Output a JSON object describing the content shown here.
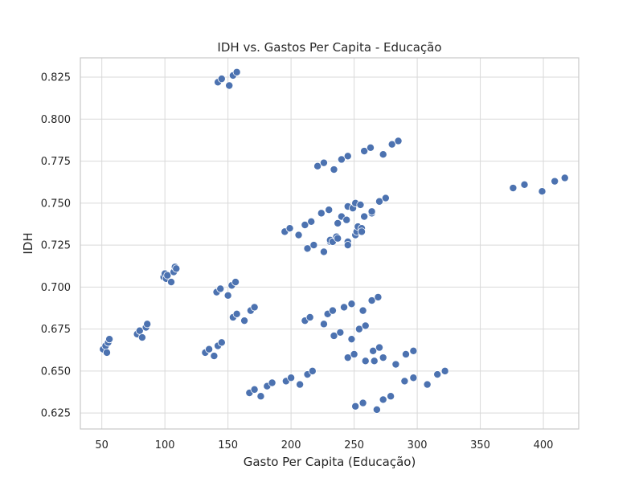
{
  "chart_data": {
    "type": "scatter",
    "title": "IDH vs. Gastos Per Capita - Educação",
    "xlabel": "Gasto Per Capita (Educação)",
    "ylabel": "IDH",
    "xlim": [
      33,
      428
    ],
    "ylim": [
      0.6155,
      0.8365
    ],
    "xticks": [
      50,
      100,
      150,
      200,
      250,
      300,
      350,
      400
    ],
    "yticks": [
      0.625,
      0.65,
      0.675,
      0.7,
      0.725,
      0.75,
      0.775,
      0.8,
      0.825
    ],
    "ytick_labels": [
      "0.625",
      "0.650",
      "0.675",
      "0.700",
      "0.725",
      "0.750",
      "0.775",
      "0.800",
      "0.825"
    ],
    "grid": true,
    "colors": {
      "point": "#4c72b0",
      "point_edge": "#ffffff",
      "grid": "#d9d9d9",
      "frame": "#c8c8c8",
      "text": "#262626"
    },
    "points": [
      [
        51,
        0.663
      ],
      [
        53,
        0.665
      ],
      [
        54,
        0.661
      ],
      [
        55,
        0.667
      ],
      [
        56,
        0.669
      ],
      [
        78,
        0.672
      ],
      [
        80,
        0.674
      ],
      [
        82,
        0.67
      ],
      [
        85,
        0.676
      ],
      [
        86,
        0.678
      ],
      [
        99,
        0.706
      ],
      [
        100,
        0.708
      ],
      [
        101,
        0.705
      ],
      [
        102,
        0.707
      ],
      [
        105,
        0.703
      ],
      [
        107,
        0.709
      ],
      [
        108,
        0.712
      ],
      [
        109,
        0.711
      ],
      [
        142,
        0.822
      ],
      [
        145,
        0.824
      ],
      [
        151,
        0.82
      ],
      [
        154,
        0.826
      ],
      [
        157,
        0.828
      ],
      [
        141,
        0.697
      ],
      [
        144,
        0.699
      ],
      [
        150,
        0.695
      ],
      [
        153,
        0.701
      ],
      [
        156,
        0.703
      ],
      [
        154,
        0.682
      ],
      [
        157,
        0.684
      ],
      [
        163,
        0.68
      ],
      [
        168,
        0.686
      ],
      [
        171,
        0.688
      ],
      [
        132,
        0.661
      ],
      [
        135,
        0.663
      ],
      [
        139,
        0.659
      ],
      [
        142,
        0.665
      ],
      [
        145,
        0.667
      ],
      [
        167,
        0.637
      ],
      [
        171,
        0.639
      ],
      [
        176,
        0.635
      ],
      [
        181,
        0.641
      ],
      [
        185,
        0.643
      ],
      [
        196,
        0.644
      ],
      [
        200,
        0.646
      ],
      [
        207,
        0.642
      ],
      [
        213,
        0.648
      ],
      [
        217,
        0.65
      ],
      [
        195,
        0.733
      ],
      [
        199,
        0.735
      ],
      [
        206,
        0.731
      ],
      [
        211,
        0.737
      ],
      [
        216,
        0.739
      ],
      [
        213,
        0.723
      ],
      [
        218,
        0.725
      ],
      [
        226,
        0.721
      ],
      [
        231,
        0.727
      ],
      [
        236,
        0.729
      ],
      [
        224,
        0.744
      ],
      [
        230,
        0.746
      ],
      [
        237,
        0.738
      ],
      [
        240,
        0.742
      ],
      [
        244,
        0.74
      ],
      [
        231,
        0.728
      ],
      [
        233,
        0.727
      ],
      [
        236,
        0.73
      ],
      [
        237,
        0.729
      ],
      [
        245,
        0.727
      ],
      [
        245,
        0.725
      ],
      [
        251,
        0.731
      ],
      [
        252,
        0.733
      ],
      [
        253,
        0.736
      ],
      [
        256,
        0.735
      ],
      [
        256,
        0.733
      ],
      [
        245,
        0.748
      ],
      [
        249,
        0.747
      ],
      [
        251,
        0.75
      ],
      [
        255,
        0.749
      ],
      [
        258,
        0.742
      ],
      [
        264,
        0.744
      ],
      [
        264,
        0.745
      ],
      [
        270,
        0.751
      ],
      [
        275,
        0.753
      ],
      [
        221,
        0.772
      ],
      [
        226,
        0.774
      ],
      [
        234,
        0.77
      ],
      [
        240,
        0.776
      ],
      [
        245,
        0.778
      ],
      [
        258,
        0.781
      ],
      [
        263,
        0.783
      ],
      [
        273,
        0.779
      ],
      [
        280,
        0.785
      ],
      [
        285,
        0.787
      ],
      [
        211,
        0.68
      ],
      [
        215,
        0.682
      ],
      [
        226,
        0.678
      ],
      [
        229,
        0.684
      ],
      [
        233,
        0.686
      ],
      [
        242,
        0.688
      ],
      [
        248,
        0.69
      ],
      [
        257,
        0.686
      ],
      [
        264,
        0.692
      ],
      [
        269,
        0.694
      ],
      [
        234,
        0.671
      ],
      [
        239,
        0.673
      ],
      [
        248,
        0.669
      ],
      [
        254,
        0.675
      ],
      [
        259,
        0.677
      ],
      [
        245,
        0.658
      ],
      [
        250,
        0.66
      ],
      [
        259,
        0.656
      ],
      [
        265,
        0.662
      ],
      [
        266,
        0.656
      ],
      [
        270,
        0.664
      ],
      [
        273,
        0.658
      ],
      [
        283,
        0.654
      ],
      [
        291,
        0.66
      ],
      [
        297,
        0.662
      ],
      [
        251,
        0.629
      ],
      [
        257,
        0.631
      ],
      [
        268,
        0.627
      ],
      [
        273,
        0.633
      ],
      [
        279,
        0.635
      ],
      [
        290,
        0.644
      ],
      [
        297,
        0.646
      ],
      [
        308,
        0.642
      ],
      [
        316,
        0.648
      ],
      [
        322,
        0.65
      ],
      [
        376,
        0.759
      ],
      [
        385,
        0.761
      ],
      [
        399,
        0.757
      ],
      [
        409,
        0.763
      ],
      [
        417,
        0.765
      ]
    ]
  }
}
